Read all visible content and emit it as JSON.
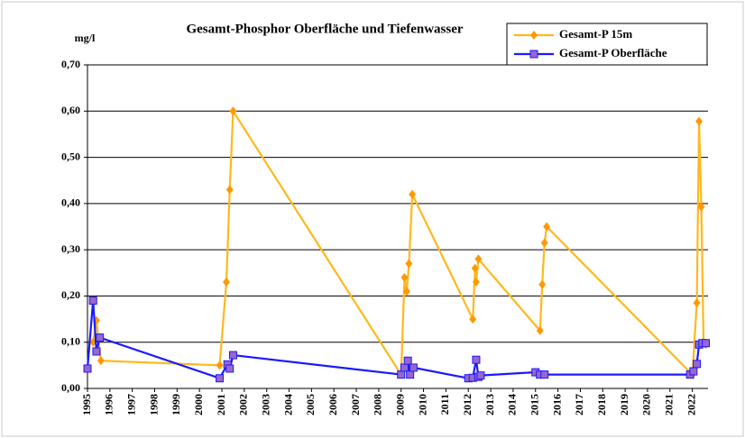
{
  "chart_data": {
    "type": "line",
    "title": "Gesamt-Phosphor Oberfläche und Tiefenwasser",
    "ylabel": "mg/l",
    "legend": "upper right",
    "grid": true,
    "xlim": [
      1995,
      2022.7
    ],
    "xticks": [
      1995,
      1996,
      1997,
      1998,
      1999,
      2000,
      2001,
      2002,
      2003,
      2004,
      2005,
      2006,
      2007,
      2008,
      2009,
      2010,
      2011,
      2012,
      2013,
      2014,
      2015,
      2016,
      2017,
      2018,
      2019,
      2020,
      2021,
      2022
    ],
    "ylim": [
      0,
      0.7
    ],
    "yticks": [
      {
        "value": 0,
        "label": "0,00"
      },
      {
        "value": 0.1,
        "label": "0,10"
      },
      {
        "value": 0.2,
        "label": "0,20"
      },
      {
        "value": 0.3,
        "label": "0,30"
      },
      {
        "value": 0.4,
        "label": "0,40"
      },
      {
        "value": 0.5,
        "label": "0,50"
      },
      {
        "value": 0.6,
        "label": "0,60"
      },
      {
        "value": 0.7,
        "label": "0,70"
      }
    ],
    "series": [
      {
        "name": "Gesamt-P 15m",
        "color": "#ffb81c",
        "marker_color": "#ff9900",
        "marker": "diamond",
        "x": [
          1995.25,
          1995.4,
          1995.6,
          2000.9,
          2001.2,
          2001.35,
          2001.5,
          2009.0,
          2009.15,
          2009.25,
          2009.35,
          2009.5,
          2012.2,
          2012.3,
          2012.35,
          2012.45,
          2015.2,
          2015.3,
          2015.4,
          2015.5,
          2022.0,
          2022.2,
          2022.3,
          2022.4,
          2022.5,
          2022.6
        ],
        "values": [
          0.1,
          0.147,
          0.06,
          0.05,
          0.23,
          0.43,
          0.6,
          0.03,
          0.24,
          0.21,
          0.27,
          0.42,
          0.15,
          0.26,
          0.23,
          0.28,
          0.125,
          0.225,
          0.315,
          0.35,
          0.03,
          0.185,
          0.578,
          0.393,
          0.1,
          0.095
        ]
      },
      {
        "name": "Gesamt-P Oberfläche",
        "color": "#1a1aff",
        "marker_color": "#9966cc",
        "marker": "square",
        "x": [
          1995.0,
          1995.25,
          1995.4,
          1995.55,
          2000.9,
          2001.25,
          2001.35,
          2001.5,
          2009.0,
          2009.15,
          2009.3,
          2009.4,
          2009.55,
          2012.0,
          2012.2,
          2012.35,
          2012.45,
          2012.55,
          2015.0,
          2015.2,
          2015.4,
          2021.9,
          2022.05,
          2022.2,
          2022.3,
          2022.45,
          2022.6
        ],
        "values": [
          0.043,
          0.19,
          0.08,
          0.11,
          0.022,
          0.052,
          0.043,
          0.072,
          0.03,
          0.045,
          0.06,
          0.03,
          0.045,
          0.022,
          0.023,
          0.062,
          0.025,
          0.028,
          0.035,
          0.03,
          0.03,
          0.03,
          0.037,
          0.053,
          0.095,
          0.098,
          0.098
        ]
      }
    ]
  }
}
